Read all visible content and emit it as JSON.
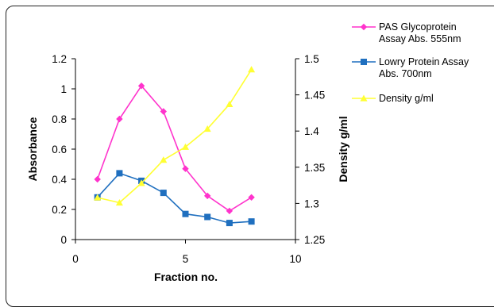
{
  "chart_data": {
    "type": "line",
    "xlabel": "Fraction no.",
    "ylabel_left": "Absorbance",
    "ylabel_right": "Density g/ml",
    "xlim": [
      0,
      10
    ],
    "ylim_left": [
      0,
      1.2
    ],
    "ylim_right": [
      1.25,
      1.5
    ],
    "x_ticks": [
      "0",
      "5",
      "10"
    ],
    "y_left_ticks": [
      "0",
      "0.2",
      "0.4",
      "0.6",
      "0.8",
      "1",
      "1.2"
    ],
    "y_right_ticks": [
      "1.25",
      "1.3",
      "1.35",
      "1.4",
      "1.45",
      "1.5"
    ],
    "grid": false,
    "legend_position": "top-right",
    "series": [
      {
        "name": "PAS Glycoprotein Assay Abs. 555nm",
        "axis": "left",
        "color": "#ff33cc",
        "marker": "diamond",
        "x": [
          1,
          2,
          3,
          4,
          5,
          6,
          7,
          8
        ],
        "values": [
          0.4,
          0.8,
          1.02,
          0.85,
          0.47,
          0.29,
          0.19,
          0.28
        ]
      },
      {
        "name": "Lowry Protein Assay Abs. 700nm",
        "axis": "left",
        "color": "#1f6fbf",
        "marker": "square",
        "x": [
          1,
          2,
          3,
          4,
          5,
          6,
          7,
          8
        ],
        "values": [
          0.28,
          0.44,
          0.39,
          0.31,
          0.17,
          0.15,
          0.11,
          0.12
        ]
      },
      {
        "name": "Density g/ml",
        "axis": "right",
        "color": "#ffff33",
        "marker": "triangle",
        "x": [
          1,
          2,
          3,
          4,
          5,
          6,
          7,
          8
        ],
        "values": [
          1.308,
          1.301,
          1.328,
          1.36,
          1.378,
          1.403,
          1.437,
          1.485
        ]
      }
    ],
    "legend_lines": [
      [
        "PAS Glycoprotein",
        "Assay Abs. 555nm"
      ],
      [
        "Lowry Protein Assay",
        "Abs. 700nm"
      ],
      [
        "Density g/ml"
      ]
    ]
  }
}
